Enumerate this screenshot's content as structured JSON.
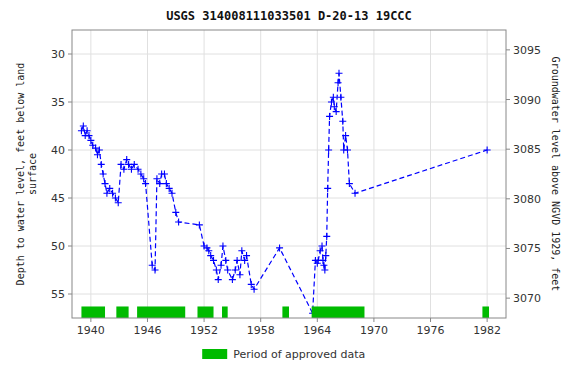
{
  "chart_data": {
    "type": "line",
    "title": "USGS 314008111033501 D-20-13 19CCC",
    "ylabel": "Depth to water level, feet below land\nsurface",
    "y2label": "Groundwater level above NGVD 1929, feet",
    "xlim": [
      1938,
      1984
    ],
    "xticks": [
      1940,
      1946,
      1952,
      1958,
      1964,
      1970,
      1976,
      1982
    ],
    "ylim": [
      57.5,
      27.5
    ],
    "yticks": [
      30,
      35,
      40,
      45,
      50,
      55
    ],
    "y2lim": [
      3068,
      3097
    ],
    "y2ticks": [
      3070,
      3075,
      3080,
      3085,
      3090,
      3095
    ],
    "grid": true,
    "legend": "bottom",
    "x": [
      1939.0,
      1939.2,
      1939.4,
      1939.6,
      1939.8,
      1940.0,
      1940.2,
      1940.5,
      1940.7,
      1940.9,
      1941.1,
      1941.3,
      1941.5,
      1941.7,
      1942.0,
      1942.3,
      1942.6,
      1942.9,
      1943.2,
      1943.5,
      1943.8,
      1944.0,
      1944.3,
      1944.6,
      1945.0,
      1945.3,
      1945.6,
      1945.8,
      1946.5,
      1946.8,
      1947.0,
      1947.3,
      1947.5,
      1947.8,
      1948.0,
      1948.3,
      1948.6,
      1949.0,
      1949.3,
      1951.5,
      1952.0,
      1952.3,
      1952.5,
      1952.7,
      1953.0,
      1953.3,
      1953.5,
      1953.8,
      1954.0,
      1954.3,
      1954.5,
      1955.0,
      1955.3,
      1955.5,
      1955.8,
      1956.0,
      1956.3,
      1956.5,
      1957.0,
      1957.3,
      1960.0,
      1963.5,
      1963.8,
      1964.0,
      1964.1,
      1964.3,
      1964.5,
      1964.6,
      1964.7,
      1964.8,
      1964.9,
      1965.0,
      1965.1,
      1965.2,
      1965.3,
      1965.5,
      1965.7,
      1965.8,
      1966.0,
      1966.2,
      1966.3,
      1966.5,
      1966.7,
      1966.8,
      1967.0,
      1967.2,
      1967.4,
      1968.0,
      1982.0
    ],
    "series": [
      {
        "color": "#0000ff",
        "marker": "plus",
        "line_style": "dashed",
        "values": [
          38.0,
          37.5,
          38.5,
          38.0,
          38.5,
          39.0,
          39.5,
          39.8,
          40.5,
          40.0,
          41.5,
          42.5,
          43.5,
          44.5,
          44.0,
          44.5,
          45.0,
          45.5,
          41.5,
          42.0,
          41.0,
          41.5,
          42.0,
          41.5,
          42.0,
          42.5,
          43.0,
          43.5,
          52.0,
          52.5,
          43.0,
          43.5,
          42.5,
          42.5,
          43.5,
          44.0,
          44.5,
          46.5,
          47.5,
          47.8,
          50.0,
          50.2,
          50.5,
          51.0,
          51.5,
          52.5,
          53.5,
          52.0,
          50.0,
          51.5,
          52.5,
          53.5,
          52.5,
          51.5,
          53.0,
          50.5,
          51.5,
          51.0,
          54.0,
          54.5,
          50.2,
          57.0,
          51.5,
          51.8,
          51.5,
          50.5,
          50.0,
          51.5,
          52.0,
          52.5,
          51.0,
          49.0,
          44.0,
          40.0,
          36.5,
          35.0,
          34.5,
          35.5,
          36.0,
          33.0,
          32.0,
          34.5,
          37.0,
          40.0,
          38.5,
          40.0,
          43.5,
          44.5,
          40.0
        ]
      },
      {
        "name": "Period of approved data",
        "type": "span",
        "color": "#00bb00",
        "periods": [
          [
            1939.0,
            1941.5
          ],
          [
            1942.7,
            1944.0
          ],
          [
            1944.9,
            1950.0
          ],
          [
            1951.3,
            1953.0
          ],
          [
            1953.9,
            1954.5
          ],
          [
            1960.3,
            1961.0
          ],
          [
            1963.4,
            1969.0
          ],
          [
            1981.5,
            1982.2
          ]
        ]
      }
    ]
  }
}
